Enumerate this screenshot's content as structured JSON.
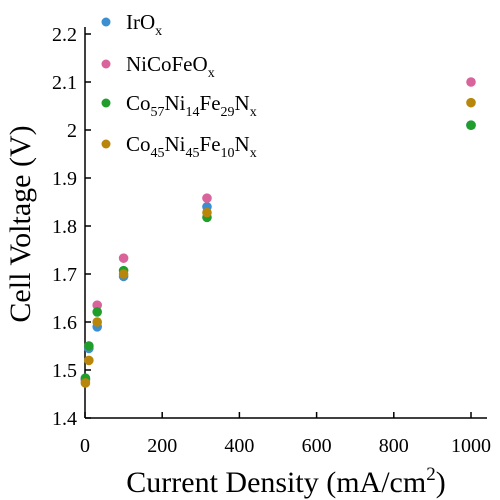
{
  "chart_data": {
    "type": "scatter",
    "xlabel": "Current Density (mA/cm²)",
    "ylabel": "Cell Voltage (V)",
    "xlim": [
      0,
      1000
    ],
    "ylim": [
      1.4,
      2.2
    ],
    "x_ticks": [
      "0",
      "200",
      "400",
      "600",
      "800",
      "1000"
    ],
    "y_ticks": [
      "1.4",
      "1.5",
      "1.6",
      "1.7",
      "1.8",
      "1.9",
      "2",
      "2.1",
      "2.2"
    ],
    "grid": false,
    "legend_position": "top-left",
    "series": [
      {
        "name": "IrOx",
        "color": "#3b8fd0",
        "points": [
          [
            1,
            1.48
          ],
          [
            10,
            1.545
          ],
          [
            31.6,
            1.59
          ],
          [
            100,
            1.695
          ],
          [
            316,
            1.84
          ],
          [
            1000,
            2.01
          ]
        ]
      },
      {
        "name": "NiCoFeOx",
        "color": "#d9639b",
        "points": [
          [
            1,
            1.48
          ],
          [
            10,
            1.55
          ],
          [
            31.6,
            1.635
          ],
          [
            100,
            1.733
          ],
          [
            316,
            1.858
          ],
          [
            1000,
            2.1
          ]
        ]
      },
      {
        "name": "Co57Ni14Fe29Nx",
        "color": "#1f9e2c",
        "points": [
          [
            1,
            1.483
          ],
          [
            10,
            1.55
          ],
          [
            31.6,
            1.621
          ],
          [
            100,
            1.707
          ],
          [
            316,
            1.818
          ],
          [
            1000,
            2.01
          ]
        ]
      },
      {
        "name": "Co45Ni45Fe10Nx",
        "color": "#b8860b",
        "points": [
          [
            1,
            1.473
          ],
          [
            10,
            1.52
          ],
          [
            31.6,
            1.6
          ],
          [
            100,
            1.7
          ],
          [
            316,
            1.828
          ],
          [
            1000,
            2.057
          ]
        ]
      }
    ]
  }
}
